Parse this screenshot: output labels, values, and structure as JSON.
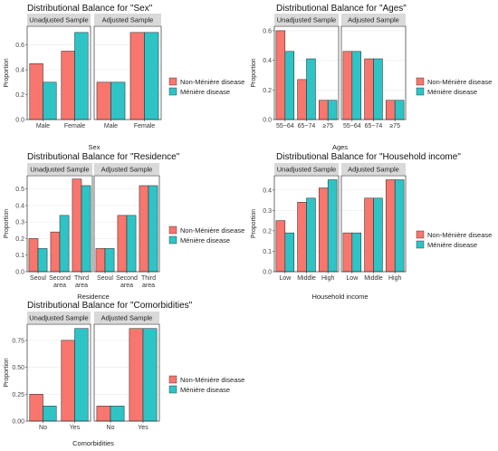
{
  "colors": {
    "non_meniere": "#F8766D",
    "meniere": "#2EC4C6",
    "strip_bg": "#D9D9D9",
    "grid": "#EBEBEB",
    "panel_border": "#333333"
  },
  "legend_labels": [
    "Non-Ménière disease",
    "Ménière disease"
  ],
  "chart_data": [
    {
      "type": "bar",
      "title": "Distributional Balance for \"Sex\"",
      "xlabel": "Sex",
      "ylabel": "Proportion",
      "ylim": [
        0,
        0.75
      ],
      "yticks": [
        "0.0",
        "0.2",
        "0.4",
        "0.6"
      ],
      "ytick_values": [
        0,
        0.2,
        0.4,
        0.6
      ],
      "facets": [
        "Unadjusted Sample",
        "Adjusted Sample"
      ],
      "categories": [
        "Male",
        "Female"
      ],
      "series": [
        {
          "name": "Non-Ménière disease",
          "values": [
            [
              0.45,
              0.55
            ],
            [
              0.3,
              0.7
            ]
          ]
        },
        {
          "name": "Ménière disease",
          "values": [
            [
              0.3,
              0.7
            ],
            [
              0.3,
              0.7
            ]
          ]
        }
      ]
    },
    {
      "type": "bar",
      "title": "Distributional Balance for \"Ages\"",
      "xlabel": "Ages",
      "ylabel": "Proportion",
      "ylim": [
        0,
        0.63
      ],
      "yticks": [
        "0.0",
        "0.2",
        "0.4",
        "0.6"
      ],
      "ytick_values": [
        0,
        0.2,
        0.4,
        0.6
      ],
      "facets": [
        "Unadjusted Sample",
        "Adjusted Sample"
      ],
      "categories": [
        "55~64",
        "65~74",
        "≥75"
      ],
      "series": [
        {
          "name": "Non-Ménière disease",
          "values": [
            [
              0.6,
              0.27,
              0.13
            ],
            [
              0.46,
              0.41,
              0.13
            ]
          ]
        },
        {
          "name": "Ménière disease",
          "values": [
            [
              0.46,
              0.41,
              0.13
            ],
            [
              0.46,
              0.41,
              0.13
            ]
          ]
        }
      ]
    },
    {
      "type": "bar",
      "title": "Distributional Balance for \"Residence\"",
      "xlabel": "Residence",
      "ylabel": "Proportion",
      "ylim": [
        0,
        0.58
      ],
      "yticks": [
        "0.0",
        "0.1",
        "0.2",
        "0.3",
        "0.4",
        "0.5"
      ],
      "ytick_values": [
        0,
        0.1,
        0.2,
        0.3,
        0.4,
        0.5
      ],
      "facets": [
        "Unadjusted Sample",
        "Adjusted Sample"
      ],
      "categories": [
        "Seoul",
        "Second area",
        "Third area"
      ],
      "series": [
        {
          "name": "Non-Ménière disease",
          "values": [
            [
              0.2,
              0.24,
              0.56
            ],
            [
              0.14,
              0.34,
              0.52
            ]
          ]
        },
        {
          "name": "Ménière disease",
          "values": [
            [
              0.14,
              0.34,
              0.52
            ],
            [
              0.14,
              0.34,
              0.52
            ]
          ]
        }
      ]
    },
    {
      "type": "bar",
      "title": "Distributional Balance for \"Household income\"",
      "xlabel": "Household income",
      "ylabel": "Proportion",
      "ylim": [
        0,
        0.47
      ],
      "yticks": [
        "0.0",
        "0.1",
        "0.2",
        "0.3",
        "0.4"
      ],
      "ytick_values": [
        0,
        0.1,
        0.2,
        0.3,
        0.4
      ],
      "facets": [
        "Unadjusted Sample",
        "Adjusted Sample"
      ],
      "categories": [
        "Low",
        "Middle",
        "High"
      ],
      "series": [
        {
          "name": "Non-Ménière disease",
          "values": [
            [
              0.25,
              0.34,
              0.41
            ],
            [
              0.19,
              0.36,
              0.45
            ]
          ]
        },
        {
          "name": "Ménière disease",
          "values": [
            [
              0.19,
              0.36,
              0.45
            ],
            [
              0.19,
              0.36,
              0.45
            ]
          ]
        }
      ]
    },
    {
      "type": "bar",
      "title": "Distributional Balance for \"Comorbidities\"",
      "xlabel": "Comorbidities",
      "ylabel": "Proportion",
      "ylim": [
        0,
        0.9
      ],
      "yticks": [
        "0.00",
        "0.25",
        "0.50",
        "0.75"
      ],
      "ytick_values": [
        0,
        0.25,
        0.5,
        0.75
      ],
      "facets": [
        "Unadjusted Sample",
        "Adjusted Sample"
      ],
      "categories": [
        "No",
        "Yes"
      ],
      "series": [
        {
          "name": "Non-Ménière disease",
          "values": [
            [
              0.25,
              0.75
            ],
            [
              0.14,
              0.86
            ]
          ]
        },
        {
          "name": "Ménière disease",
          "values": [
            [
              0.14,
              0.86
            ],
            [
              0.14,
              0.86
            ]
          ]
        }
      ]
    }
  ]
}
